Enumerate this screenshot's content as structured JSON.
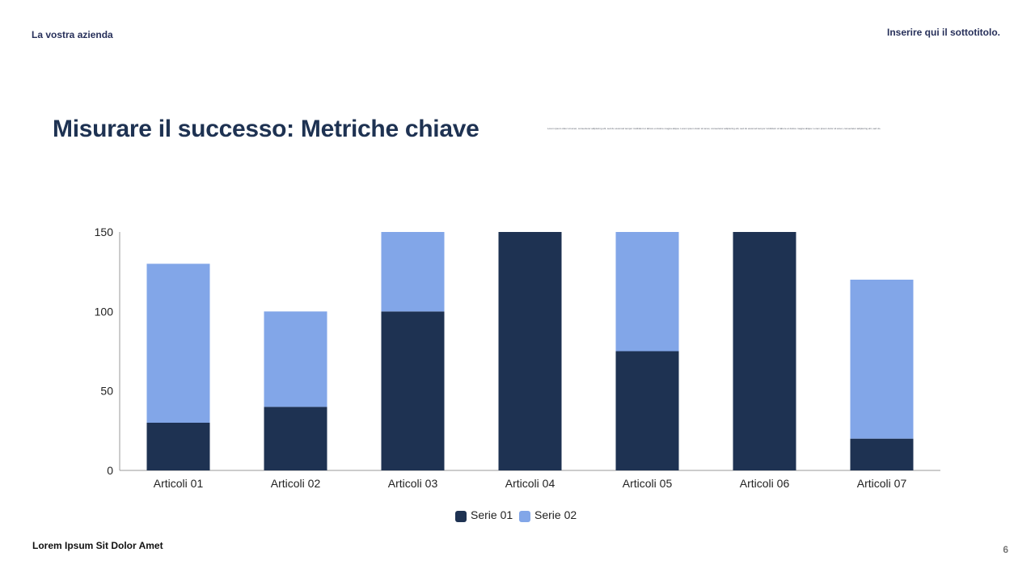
{
  "header": {
    "company": "La vostra azienda",
    "subtitle": "Inserire qui il sottotitolo."
  },
  "slide": {
    "title": "Misurare il successo: Metriche chiave",
    "body_text": "Lorem ipsum dolor sit amet, consectetur adipiscing elit, sed do eiusmod tempor incididunt ut labore et dolore magna aliqua. Lorem ipsum dolor sit amet, consectetur adipiscing elit, sed do eiusmod tempor incididunt ut labore et dolore magna aliqua. Lorem ipsum dolor sit amet, consectetur adipiscing elit, sed do."
  },
  "footer": {
    "left_text": "Lorem Ipsum Sit Dolor Amet",
    "page_number": "6"
  },
  "colors": {
    "series1": "#1e3252",
    "series2": "#82a6e8",
    "axis": "#999999",
    "text": "#222222"
  },
  "chart_data": {
    "type": "bar",
    "stacked": true,
    "categories": [
      "Articoli 01",
      "Articoli 02",
      "Articoli 03",
      "Articoli 04",
      "Articoli 05",
      "Articoli 06",
      "Articoli 07"
    ],
    "series": [
      {
        "name": "Serie 01",
        "values": [
          30,
          40,
          100,
          150,
          75,
          150,
          20
        ]
      },
      {
        "name": "Serie 02",
        "values": [
          100,
          60,
          50,
          0,
          75,
          0,
          100
        ]
      }
    ],
    "yticks": [
      0,
      50,
      100,
      150
    ],
    "ylim": [
      0,
      150
    ],
    "grid": false,
    "legend": "bottom"
  }
}
